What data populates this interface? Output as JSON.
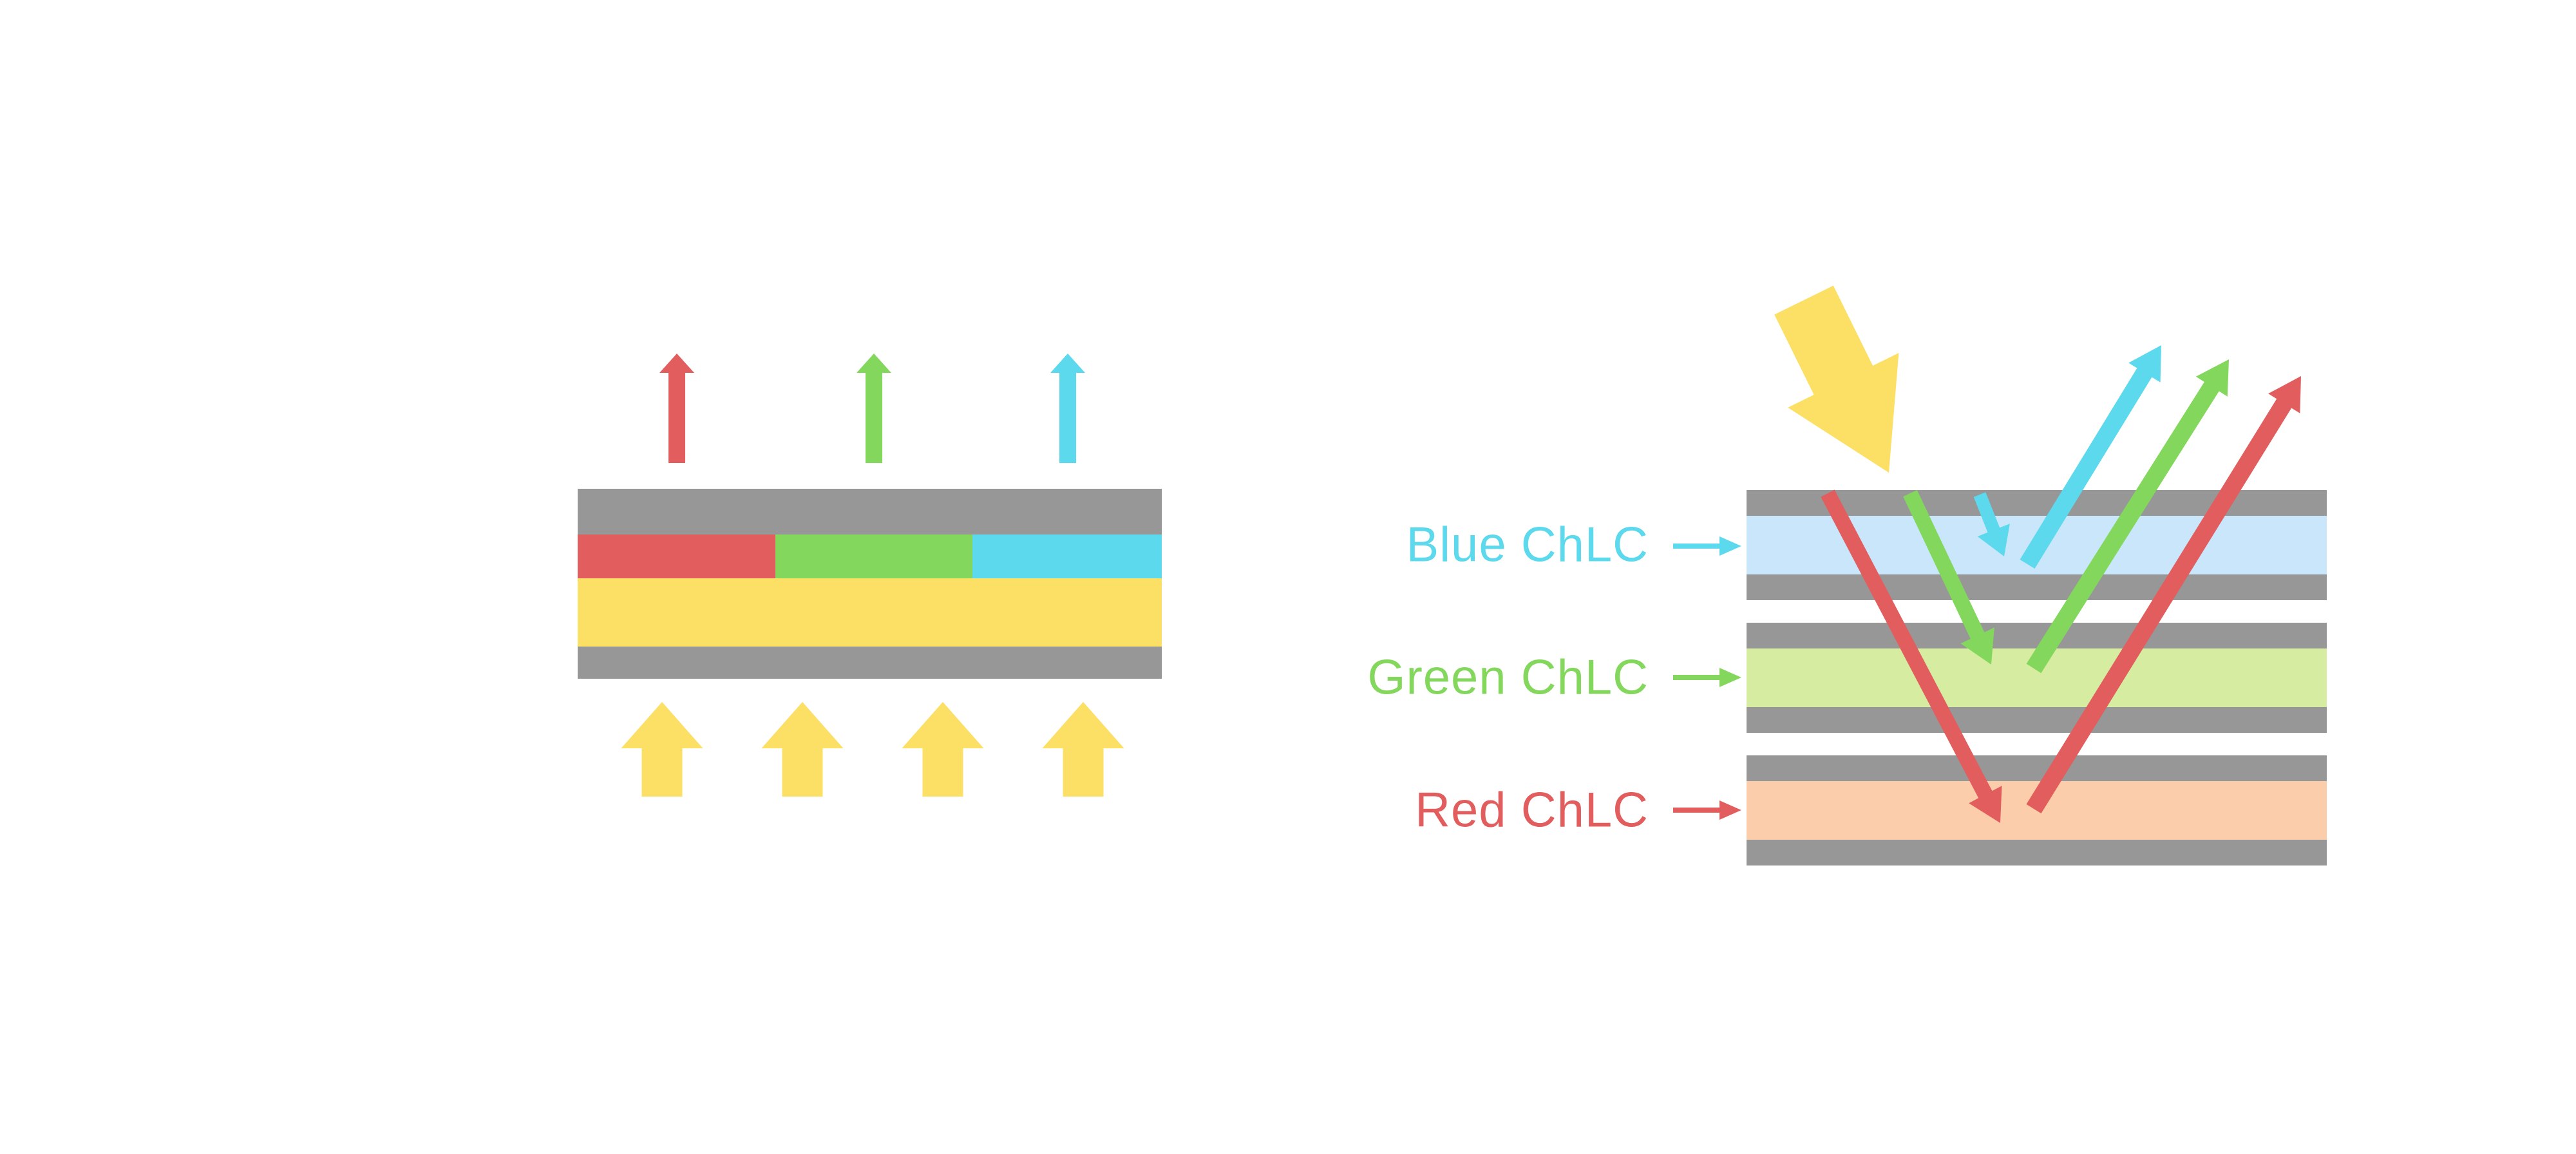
{
  "colors": {
    "gray": "#979797",
    "red": "#E25D5D",
    "green": "#83D75C",
    "cyan": "#5CD9EC",
    "yellow": "#FCE066",
    "pale_blue": "#C9E6FA",
    "pale_green": "#D6EDA1",
    "pale_salmon": "#FCCDAB",
    "background": "#FFFFFF"
  },
  "left_diagram": {
    "layers": [
      {
        "name": "left-top-substrate",
        "color": "gray"
      },
      {
        "name": "left-red-segment",
        "color": "red"
      },
      {
        "name": "left-green-segment",
        "color": "green"
      },
      {
        "name": "left-cyan-segment",
        "color": "cyan"
      },
      {
        "name": "left-yellow-layer",
        "color": "yellow"
      },
      {
        "name": "left-bottom-substrate",
        "color": "gray"
      }
    ],
    "arrows": [
      {
        "name": "red-output-arrow",
        "color": "red"
      },
      {
        "name": "green-output-arrow",
        "color": "green"
      },
      {
        "name": "cyan-output-arrow",
        "color": "cyan"
      },
      {
        "name": "backlight-arrow-1",
        "color": "yellow"
      },
      {
        "name": "backlight-arrow-2",
        "color": "yellow"
      },
      {
        "name": "backlight-arrow-3",
        "color": "yellow"
      },
      {
        "name": "backlight-arrow-4",
        "color": "yellow"
      }
    ]
  },
  "right_diagram": {
    "labels": [
      {
        "text": "Blue ChLC",
        "color": "cyan"
      },
      {
        "text": "Green ChLC",
        "color": "green"
      },
      {
        "text": "Red ChLC",
        "color": "red"
      }
    ],
    "layers": [
      {
        "name": "blue-cell-top-substrate",
        "color": "gray"
      },
      {
        "name": "blue-chlc-layer",
        "color": "pale_blue"
      },
      {
        "name": "blue-cell-bottom-substrate",
        "color": "gray"
      },
      {
        "name": "green-cell-top-substrate",
        "color": "gray"
      },
      {
        "name": "green-chlc-layer",
        "color": "pale_green"
      },
      {
        "name": "green-cell-bottom-substrate",
        "color": "gray"
      },
      {
        "name": "red-cell-top-substrate",
        "color": "gray"
      },
      {
        "name": "red-chlc-layer",
        "color": "pale_salmon"
      },
      {
        "name": "red-cell-bottom-substrate",
        "color": "gray"
      }
    ],
    "arrows": [
      {
        "name": "incident-light-arrow",
        "color": "yellow"
      },
      {
        "name": "red-ray-down-arrow",
        "color": "red"
      },
      {
        "name": "green-ray-down-arrow",
        "color": "green"
      },
      {
        "name": "cyan-ray-down-arrow",
        "color": "cyan"
      },
      {
        "name": "cyan-ray-up-arrow",
        "color": "cyan"
      },
      {
        "name": "green-ray-up-arrow",
        "color": "green"
      },
      {
        "name": "red-ray-up-arrow",
        "color": "red"
      },
      {
        "name": "blue-label-pointer-arrow",
        "color": "cyan"
      },
      {
        "name": "green-label-pointer-arrow",
        "color": "green"
      },
      {
        "name": "red-label-pointer-arrow",
        "color": "red"
      }
    ]
  }
}
